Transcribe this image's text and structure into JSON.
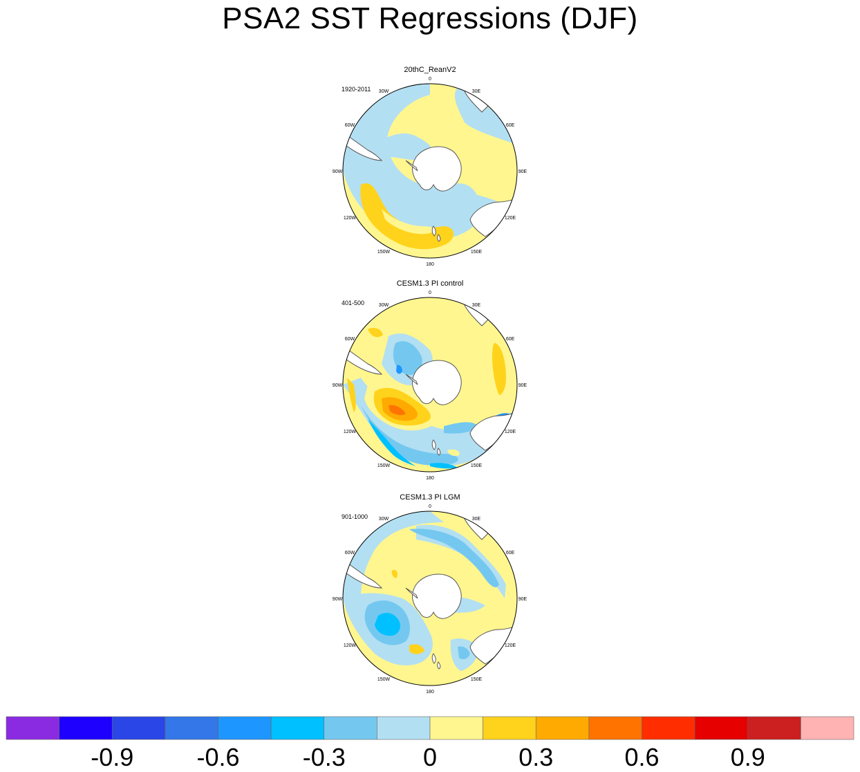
{
  "title": "PSA2 SST Regressions (DJF)",
  "panels": [
    {
      "name": "20thC_ReanV2",
      "period": "1920-2011",
      "pattern": "reanalysis",
      "longitude_labels": [
        "0",
        "30E",
        "60E",
        "90E",
        "120E",
        "150E",
        "180",
        "150W",
        "120W",
        "90W",
        "60W",
        "30W"
      ]
    },
    {
      "name": "CESM1.3 PI control",
      "period": "401-500",
      "pattern": "pi_control",
      "longitude_labels": [
        "0",
        "30E",
        "60E",
        "90E",
        "120E",
        "150E",
        "180",
        "150W",
        "120W",
        "90W",
        "60W",
        "30W"
      ]
    },
    {
      "name": "CESM1.3 PI LGM",
      "period": "901-1000",
      "pattern": "lgm",
      "longitude_labels": [
        "0",
        "30E",
        "60E",
        "90E",
        "120E",
        "150E",
        "180",
        "150W",
        "120W",
        "90W",
        "60W",
        "30W"
      ]
    }
  ],
  "colorbar": {
    "colors": [
      "#8a2be2",
      "#1e00ff",
      "#2a46e6",
      "#3377e8",
      "#1e96ff",
      "#00c0ff",
      "#74c8f0",
      "#b3dff2",
      "#fff68f",
      "#ffd31c",
      "#ffaa00",
      "#ff7300",
      "#ff2d00",
      "#e60000",
      "#cc1f1f",
      "#ffb3b3"
    ],
    "tick_labels": [
      "-0.9",
      "-0.6",
      "-0.3",
      "0",
      "0.3",
      "0.6",
      "0.9"
    ]
  },
  "style": {
    "land_color": "#ffffff",
    "background_field": "#fff68f"
  }
}
